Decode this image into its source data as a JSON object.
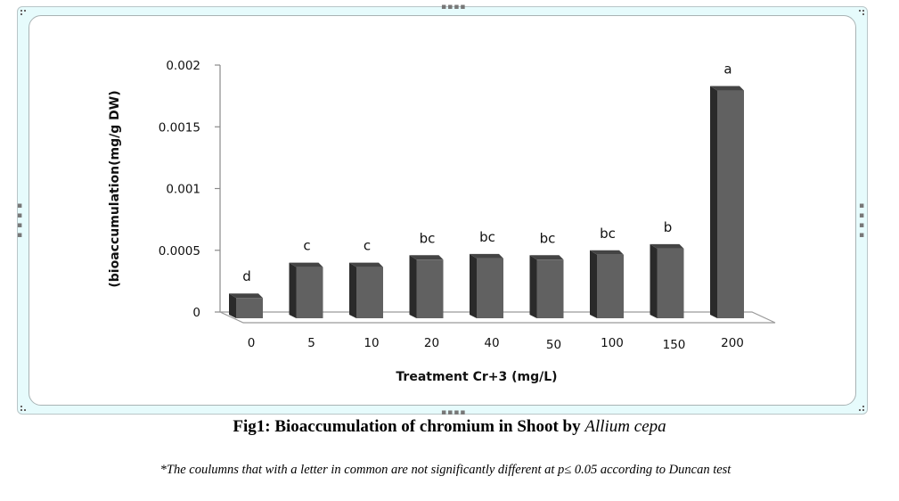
{
  "chart_data": {
    "type": "bar",
    "style": "3d-column",
    "title": "",
    "xlabel": "Treatment Cr+3 (mg/L)",
    "ylabel": "(bioaccumulation(mg/g  DW)",
    "ylim": [
      0,
      0.002
    ],
    "yticks": [
      0,
      0.0005,
      0.001,
      0.0015,
      0.002
    ],
    "ytick_labels": [
      "0",
      "0.0005",
      "0.001",
      "0.0015",
      "0.002"
    ],
    "categories": [
      "0",
      "5",
      "10",
      "20",
      "40",
      "50",
      "100",
      "150",
      "200"
    ],
    "values": [
      0.00015,
      0.0004,
      0.0004,
      0.00046,
      0.00047,
      0.00046,
      0.0005,
      0.00055,
      0.00183
    ],
    "significance_letters": [
      "d",
      "c",
      "c",
      "bc",
      "bc",
      "bc",
      "bc",
      "b",
      "a"
    ],
    "grid": false,
    "legend": "none",
    "bar_color": "#616161",
    "bar_side_color": "#2a2a2a",
    "bar_top_color": "#444444"
  },
  "caption": {
    "prefix": "Fig1",
    "text": ": Bioaccumulation of chromium in Shoot by ",
    "species": "Allium cepa"
  },
  "footnote": "*The coulumns  that with a letter in common are not significantly different at p≤ 0.05 according to Duncan test"
}
